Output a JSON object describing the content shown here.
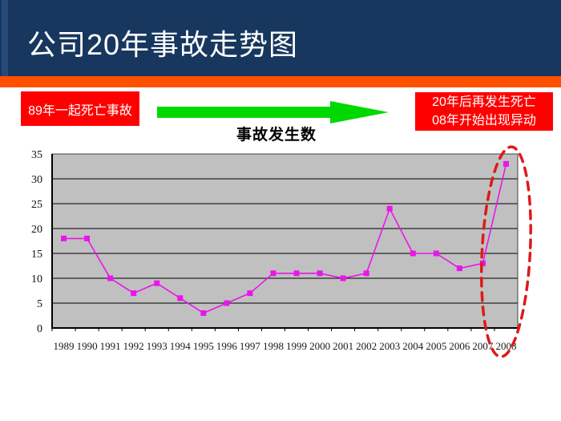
{
  "slide": {
    "title": "公司20年事故走势图"
  },
  "annotations": {
    "left_box": "89年一起死亡事故",
    "right_box_line1": "20年后再发生死亡",
    "right_box_line2": "08年开始出现异动"
  },
  "colors": {
    "header_bg": "#17375E",
    "header_stripe": "#26497D",
    "accent_bar": "#FF5000",
    "callout_bg": "#FE0000",
    "arrow_green": "#00D900",
    "highlight_red": "#DD1A1A"
  },
  "chart_data": {
    "type": "line",
    "title": "事故发生数",
    "categories": [
      "1989",
      "1990",
      "1991",
      "1992",
      "1993",
      "1994",
      "1995",
      "1996",
      "1997",
      "1998",
      "1999",
      "2000",
      "2001",
      "2002",
      "2003",
      "2004",
      "2005",
      "2006",
      "2007",
      "2008"
    ],
    "values": [
      18,
      18,
      10,
      7,
      9,
      6,
      3,
      5,
      7,
      11,
      11,
      11,
      10,
      11,
      24,
      15,
      15,
      12,
      13,
      33
    ],
    "xlabel": "",
    "ylabel": "",
    "ylim": [
      0,
      35
    ],
    "yticks": [
      0,
      5,
      10,
      15,
      20,
      25,
      30,
      35
    ],
    "grid": true,
    "legend": "none",
    "plot_background": "#C0C0C0",
    "series_color": "#EA15EA",
    "marker": "square",
    "highlight": {
      "category": "2008",
      "shape": "dashed-ellipse",
      "color": "#DD1A1A"
    }
  }
}
